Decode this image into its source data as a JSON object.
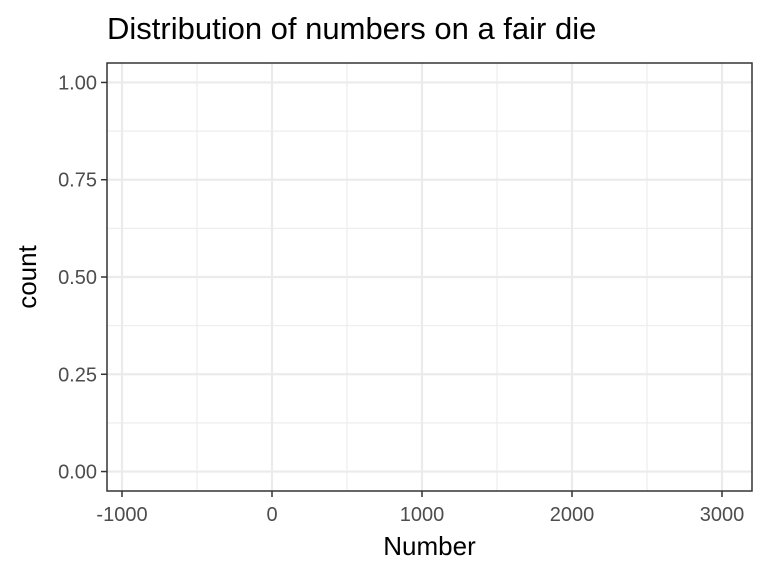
{
  "chart_data": {
    "type": "bar",
    "title": "Distribution of numbers on a fair die",
    "xlabel": "Number",
    "ylabel": "count",
    "xlim": [
      -1100,
      3200
    ],
    "ylim": [
      -0.05,
      1.05
    ],
    "x_ticks": [
      -1000,
      0,
      1000,
      2000,
      3000
    ],
    "x_tick_labels": [
      "-1000",
      "0",
      "1000",
      "2000",
      "3000"
    ],
    "y_ticks": [
      0,
      0.25,
      0.5,
      0.75,
      1.0
    ],
    "y_tick_labels": [
      "0.00",
      "0.25",
      "0.50",
      "0.75",
      "1.00"
    ],
    "grid": true,
    "categories": [],
    "values": []
  }
}
